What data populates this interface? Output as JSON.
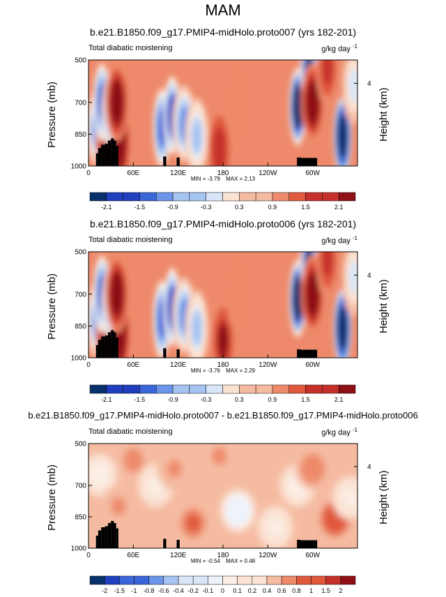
{
  "title": "MAM",
  "colors": {
    "scale11": [
      "#08306b",
      "#1f3fbf",
      "#3b66d9",
      "#6b95e8",
      "#a6c4f2",
      "#d8e6f7",
      "#fbe3d4",
      "#f5bba1",
      "#ee8a6b",
      "#e0593c",
      "#c5302a",
      "#8e0f16"
    ],
    "scale_diff": [
      "#08306b",
      "#1f3fbf",
      "#3b66d9",
      "#6b95e8",
      "#a6c4f2",
      "#d8e6f7",
      "#eef3fb",
      "#fbeee6",
      "#fbe3d4",
      "#f5bba1",
      "#ee8a6b",
      "#e0593c",
      "#c5302a",
      "#8e0f16"
    ],
    "terrain": "#000000"
  },
  "chart_data": [
    {
      "type": "heatmap",
      "title": "b.e21.B1850.f09_g17.PMIP4-midHolo.proto007 (yrs 182-201)",
      "left_string": "Total diabatic moistening",
      "units": "g/kg day",
      "units_exp": "-1",
      "ylabel": "Pressure (mb)",
      "ylabel_right": "Height (km)",
      "xlabel": "",
      "x_ticks": [
        "0",
        "60E",
        "120E",
        "180",
        "120W",
        "60W"
      ],
      "x_tick_values": [
        0,
        60,
        120,
        180,
        240,
        300
      ],
      "xlim": [
        0,
        360
      ],
      "y_ticks": [
        "500",
        "700",
        "850",
        "1000"
      ],
      "y_tick_values": [
        500,
        700,
        850,
        1000
      ],
      "ylim": [
        1000,
        500
      ],
      "right_ticks": [
        "4"
      ],
      "right_tick_values": [
        4
      ],
      "min_label": "MIN = -3.79",
      "max_label": "MAX = 2.13",
      "colorbar_labels": [
        "-2.1",
        "-1.5",
        "-0.9",
        "-0.3",
        "0.3",
        "0.9",
        "1.5",
        "2.1"
      ],
      "colorbar_levels": [
        -2.4,
        -2.1,
        -1.8,
        -1.5,
        -1.2,
        -0.9,
        -0.6,
        -0.3,
        0,
        0.3,
        0.6,
        0.9,
        1.2,
        1.5,
        1.8,
        2.1,
        2.4
      ],
      "features": [
        {
          "lon": 12,
          "p": 820,
          "v": -1.2
        },
        {
          "lon": 25,
          "p": 880,
          "v": 1.0
        },
        {
          "lon": 18,
          "p": 700,
          "v": -1.8
        },
        {
          "lon": 33,
          "p": 740,
          "v": -1.5
        },
        {
          "lon": 42,
          "p": 880,
          "v": 2.1
        },
        {
          "lon": 38,
          "p": 700,
          "v": 1.2
        },
        {
          "lon": 98,
          "p": 820,
          "v": -1.6
        },
        {
          "lon": 112,
          "p": 760,
          "v": -1.9
        },
        {
          "lon": 128,
          "p": 800,
          "v": -1.4
        },
        {
          "lon": 145,
          "p": 860,
          "v": -0.9
        },
        {
          "lon": 175,
          "p": 920,
          "v": 0.8
        },
        {
          "lon": 200,
          "p": 700,
          "v": 0.3
        },
        {
          "lon": 280,
          "p": 720,
          "v": -2.8
        },
        {
          "lon": 295,
          "p": 560,
          "v": -2.2
        },
        {
          "lon": 300,
          "p": 700,
          "v": 1.4
        },
        {
          "lon": 340,
          "p": 860,
          "v": -3.0
        },
        {
          "lon": 320,
          "p": 540,
          "v": 0.7
        },
        {
          "lon": 355,
          "p": 620,
          "v": -0.6
        }
      ]
    },
    {
      "type": "heatmap",
      "title": "b.e21.B1850.f09_g17.PMIP4-midHolo.proto006 (yrs 182-201)",
      "left_string": "Total diabatic moistening",
      "units": "g/kg day",
      "units_exp": "-1",
      "ylabel": "Pressure (mb)",
      "ylabel_right": "Height (km)",
      "xlabel": "",
      "x_ticks": [
        "0",
        "60E",
        "120E",
        "180",
        "120W",
        "60W"
      ],
      "x_tick_values": [
        0,
        60,
        120,
        180,
        240,
        300
      ],
      "xlim": [
        0,
        360
      ],
      "y_ticks": [
        "500",
        "700",
        "850",
        "1000"
      ],
      "y_tick_values": [
        500,
        700,
        850,
        1000
      ],
      "ylim": [
        1000,
        500
      ],
      "right_ticks": [
        "4"
      ],
      "right_tick_values": [
        4
      ],
      "min_label": "MIN = -3.76",
      "max_label": "MAX = 2.29",
      "colorbar_labels": [
        "-2.1",
        "-1.5",
        "-0.9",
        "-0.3",
        "0.3",
        "0.9",
        "1.5",
        "2.1"
      ],
      "colorbar_levels": [
        -2.4,
        -2.1,
        -1.8,
        -1.5,
        -1.2,
        -0.9,
        -0.6,
        -0.3,
        0,
        0.3,
        0.6,
        0.9,
        1.2,
        1.5,
        1.8,
        2.1,
        2.4
      ],
      "features": [
        {
          "lon": 12,
          "p": 820,
          "v": -1.2
        },
        {
          "lon": 25,
          "p": 880,
          "v": 1.1
        },
        {
          "lon": 18,
          "p": 700,
          "v": -1.8
        },
        {
          "lon": 33,
          "p": 740,
          "v": -1.5
        },
        {
          "lon": 42,
          "p": 880,
          "v": 2.2
        },
        {
          "lon": 38,
          "p": 700,
          "v": 1.2
        },
        {
          "lon": 98,
          "p": 820,
          "v": -1.7
        },
        {
          "lon": 112,
          "p": 760,
          "v": -1.9
        },
        {
          "lon": 128,
          "p": 800,
          "v": -1.4
        },
        {
          "lon": 145,
          "p": 860,
          "v": -0.9
        },
        {
          "lon": 180,
          "p": 920,
          "v": 1.0
        },
        {
          "lon": 200,
          "p": 700,
          "v": 0.3
        },
        {
          "lon": 280,
          "p": 720,
          "v": -2.8
        },
        {
          "lon": 295,
          "p": 560,
          "v": -2.2
        },
        {
          "lon": 300,
          "p": 700,
          "v": 1.4
        },
        {
          "lon": 340,
          "p": 860,
          "v": -3.0
        },
        {
          "lon": 320,
          "p": 540,
          "v": 0.7
        },
        {
          "lon": 355,
          "p": 620,
          "v": -0.6
        }
      ]
    },
    {
      "type": "heatmap",
      "title": "b.e21.B1850.f09_g17.PMIP4-midHolo.proto007 - b.e21.B1850.f09_g17.PMIP4-midHolo.proto006",
      "left_string": "Total diabatic moistening",
      "units": "g/kg day",
      "units_exp": "-1",
      "ylabel": "Pressure (mb)",
      "ylabel_right": "Height (km)",
      "xlabel": "",
      "x_ticks": [
        "0",
        "60E",
        "120E",
        "180",
        "120W",
        "60W"
      ],
      "x_tick_values": [
        0,
        60,
        120,
        180,
        240,
        300
      ],
      "xlim": [
        0,
        360
      ],
      "y_ticks": [
        "500",
        "700",
        "850",
        "1000"
      ],
      "y_tick_values": [
        500,
        700,
        850,
        1000
      ],
      "ylim": [
        1000,
        500
      ],
      "right_ticks": [
        "4"
      ],
      "right_tick_values": [
        4
      ],
      "min_label": "MIN = -0.54",
      "max_label": "MAX = 0.48",
      "colorbar_labels": [
        "-2",
        "-1.5",
        "-1",
        "-0.8",
        "-0.6",
        "-0.4",
        "-0.2",
        "-0.1",
        "0",
        "0.1",
        "0.2",
        "0.4",
        "0.6",
        "0.8",
        "1",
        "1.5",
        "2"
      ],
      "colorbar_levels": [
        -2.5,
        -2,
        -1.5,
        -1,
        -0.8,
        -0.6,
        -0.4,
        -0.2,
        -0.1,
        0,
        0.1,
        0.2,
        0.4,
        0.6,
        0.8,
        1,
        1.5,
        2,
        2.5
      ],
      "features": [
        {
          "lon": 15,
          "p": 650,
          "v": -0.15
        },
        {
          "lon": 40,
          "p": 800,
          "v": 0.12
        },
        {
          "lon": 60,
          "p": 580,
          "v": 0.15
        },
        {
          "lon": 90,
          "p": 700,
          "v": -0.12
        },
        {
          "lon": 115,
          "p": 620,
          "v": 0.12
        },
        {
          "lon": 140,
          "p": 880,
          "v": 0.25
        },
        {
          "lon": 200,
          "p": 820,
          "v": -0.35
        },
        {
          "lon": 175,
          "p": 560,
          "v": 0.12
        },
        {
          "lon": 240,
          "p": 650,
          "v": 0.08
        },
        {
          "lon": 280,
          "p": 700,
          "v": -0.15
        },
        {
          "lon": 300,
          "p": 620,
          "v": 0.18
        },
        {
          "lon": 330,
          "p": 860,
          "v": 0.35
        },
        {
          "lon": 350,
          "p": 760,
          "v": -0.1
        },
        {
          "lon": 250,
          "p": 900,
          "v": -0.1
        }
      ]
    }
  ]
}
